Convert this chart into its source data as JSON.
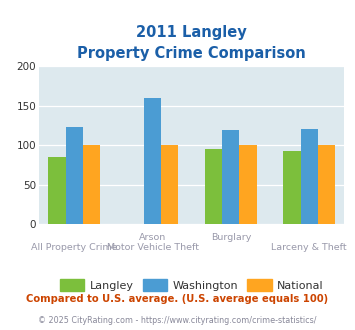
{
  "title_line1": "2011 Langley",
  "title_line2": "Property Crime Comparison",
  "bars_data": [
    [
      85,
      123,
      100
    ],
    [
      null,
      159,
      100
    ],
    [
      95,
      119,
      100
    ],
    [
      93,
      121,
      100
    ]
  ],
  "bar_width": 0.22,
  "group_positions": [
    0,
    1,
    2,
    3
  ],
  "colors": {
    "langley": "#7CBF3C",
    "washington": "#4B9CD3",
    "national": "#FFA520"
  },
  "ylim": [
    0,
    200
  ],
  "yticks": [
    0,
    50,
    100,
    150,
    200
  ],
  "plot_bg": "#DDE9EE",
  "legend_labels": [
    "Langley",
    "Washington",
    "National"
  ],
  "label_top_arson": "Arson",
  "label_top_burglary": "Burglary",
  "label_bot_allprop": "All Property Crime",
  "label_bot_mvt": "Motor Vehicle Theft",
  "label_bot_larceny": "Larceny & Theft",
  "footnote1": "Compared to U.S. average. (U.S. average equals 100)",
  "footnote2": "© 2025 CityRating.com - https://www.cityrating.com/crime-statistics/",
  "title_color": "#1B5FA8",
  "footnote1_color": "#CC4400",
  "footnote2_color": "#888899",
  "xlabel_color": "#9999AA"
}
